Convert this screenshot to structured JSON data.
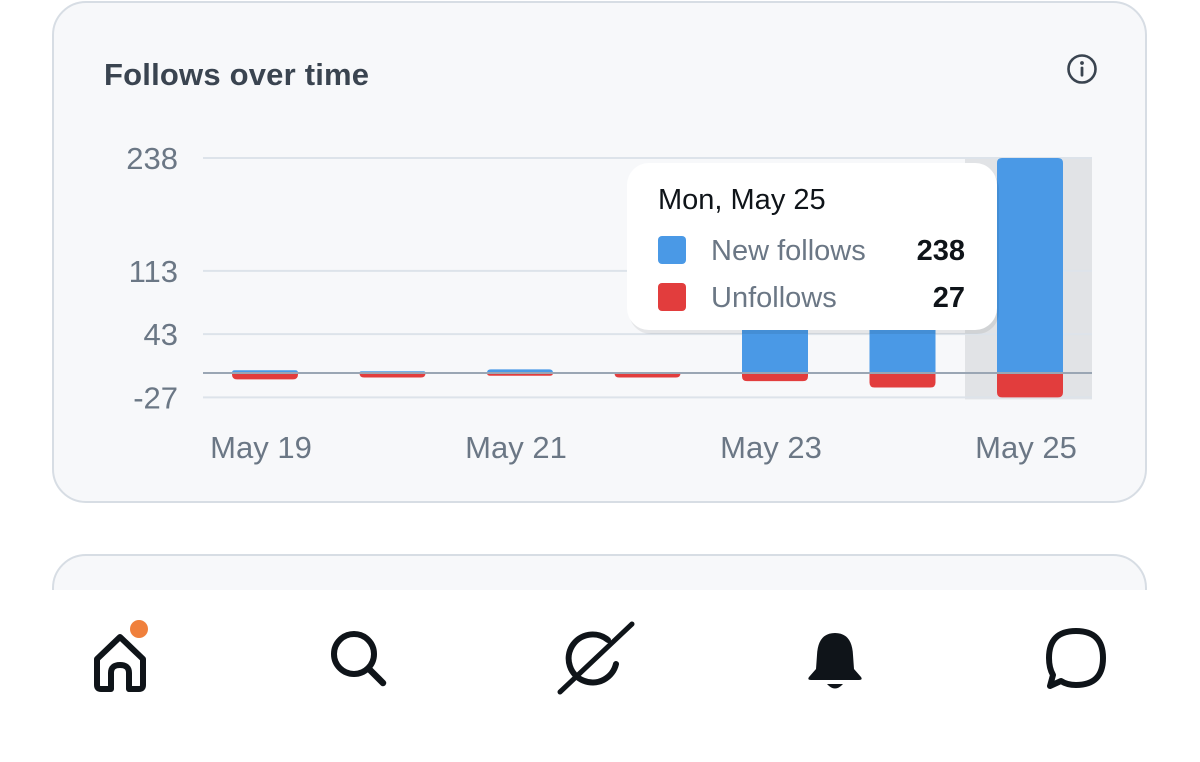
{
  "card": {
    "title": "Follows over time",
    "info_icon": "info-circle-icon"
  },
  "colors": {
    "new_follows": "#4a99e6",
    "unfollows": "#e23d3d",
    "gridline": "#dde3ea",
    "baseline": "#9aa6b4",
    "highlight": "#e1e3e6",
    "notification_dot": "#f0803c"
  },
  "chart_data": {
    "type": "bar",
    "categories": [
      "May 19",
      "May 20",
      "May 21",
      "May 22",
      "May 23",
      "May 24",
      "May 25"
    ],
    "x_tick_labels": [
      "May 19",
      "May 21",
      "May 23",
      "May 25"
    ],
    "y_tick_labels": [
      "238",
      "113",
      "43",
      "-27"
    ],
    "ylim": [
      -27,
      238
    ],
    "series": [
      {
        "name": "New follows",
        "values": [
          3,
          2,
          4,
          1,
          124,
          101,
          238
        ]
      },
      {
        "name": "Unfollows",
        "values": [
          -7,
          -5,
          -3,
          -5,
          -9,
          -16,
          -27
        ]
      }
    ],
    "highlighted_category": "May 25",
    "tooltip": {
      "title": "Mon, May 25",
      "rows": [
        {
          "label": "New follows",
          "value": "238"
        },
        {
          "label": "Unfollows",
          "value": "27"
        }
      ]
    }
  },
  "tabbar": {
    "items": [
      {
        "name": "home",
        "icon": "home-icon",
        "has_badge": true
      },
      {
        "name": "search",
        "icon": "search-icon"
      },
      {
        "name": "grok",
        "icon": "grok-icon"
      },
      {
        "name": "notifications",
        "icon": "bell-icon"
      },
      {
        "name": "messages",
        "icon": "chat-bubble-icon"
      }
    ]
  }
}
